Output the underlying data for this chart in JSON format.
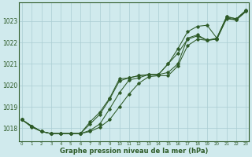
{
  "x": [
    0,
    1,
    2,
    3,
    4,
    5,
    6,
    7,
    8,
    9,
    10,
    11,
    12,
    13,
    14,
    15,
    16,
    17,
    18,
    19,
    20,
    21,
    22,
    23
  ],
  "line1": [
    1018.4,
    1018.05,
    1017.85,
    1017.75,
    1017.75,
    1017.75,
    1017.75,
    1017.85,
    1018.05,
    1018.4,
    1019.0,
    1019.6,
    1020.1,
    1020.4,
    1020.45,
    1020.45,
    1020.9,
    1021.85,
    1022.15,
    1022.1,
    1022.15,
    1023.1,
    1023.05,
    1023.45
  ],
  "line2": [
    1018.4,
    1018.1,
    1017.85,
    1017.75,
    1017.75,
    1017.75,
    1017.75,
    1017.9,
    1018.2,
    1018.9,
    1019.65,
    1020.25,
    1020.35,
    1020.5,
    1020.5,
    1020.6,
    1021.0,
    1022.2,
    1022.35,
    1022.1,
    1022.15,
    1023.15,
    1023.05,
    1023.45
  ],
  "line3": [
    1018.4,
    1018.1,
    1017.85,
    1017.75,
    1017.75,
    1017.75,
    1017.75,
    1018.3,
    1018.75,
    1019.4,
    1020.3,
    1020.35,
    1020.45,
    1020.5,
    1020.5,
    1021.0,
    1021.7,
    1022.5,
    1022.75,
    1022.8,
    1022.2,
    1023.2,
    1023.1,
    1023.5
  ],
  "line4": [
    1018.4,
    1018.1,
    1017.85,
    1017.75,
    1017.75,
    1017.75,
    1017.75,
    1018.2,
    1018.65,
    1019.35,
    1020.2,
    1020.35,
    1020.45,
    1020.5,
    1020.5,
    1021.0,
    1021.5,
    1022.15,
    1022.3,
    1022.1,
    1022.2,
    1023.2,
    1023.1,
    1023.5
  ],
  "line_color": "#2d5a27",
  "bg_color": "#d0eaed",
  "grid_color": "#aacdd2",
  "ylabel_values": [
    1018,
    1019,
    1020,
    1021,
    1022,
    1023
  ],
  "xlabel_values": [
    0,
    1,
    2,
    3,
    4,
    5,
    6,
    7,
    8,
    9,
    10,
    11,
    12,
    13,
    14,
    15,
    16,
    17,
    18,
    19,
    20,
    21,
    22,
    23
  ],
  "xlabel": "Graphe pression niveau de la mer (hPa)",
  "ylim": [
    1017.4,
    1023.85
  ],
  "xlim": [
    -0.3,
    23.3
  ]
}
